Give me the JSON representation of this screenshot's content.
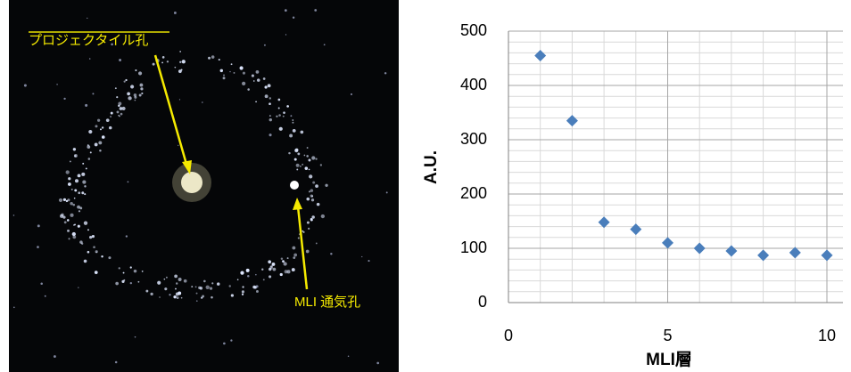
{
  "photo": {
    "labels": [
      "プロジェクタイル孔",
      "MLI 通気孔"
    ]
  },
  "chart_data": {
    "type": "scatter",
    "x_label": "MLI層",
    "y_label": "A.U.",
    "x": [
      1,
      2,
      3,
      4,
      5,
      6,
      7,
      8,
      9,
      10
    ],
    "series": [
      {
        "color": "#4a7ebb",
        "values": [
          455,
          335,
          148,
          135,
          110,
          100,
          95,
          87,
          92,
          87
        ]
      }
    ],
    "xlim": [
      0,
      10
    ],
    "xticks": [
      0,
      5,
      10
    ],
    "ylim": [
      0,
      500
    ],
    "yticks": [
      0,
      100,
      200,
      300,
      400,
      500
    ],
    "grid": true,
    "minor_grid": true
  }
}
